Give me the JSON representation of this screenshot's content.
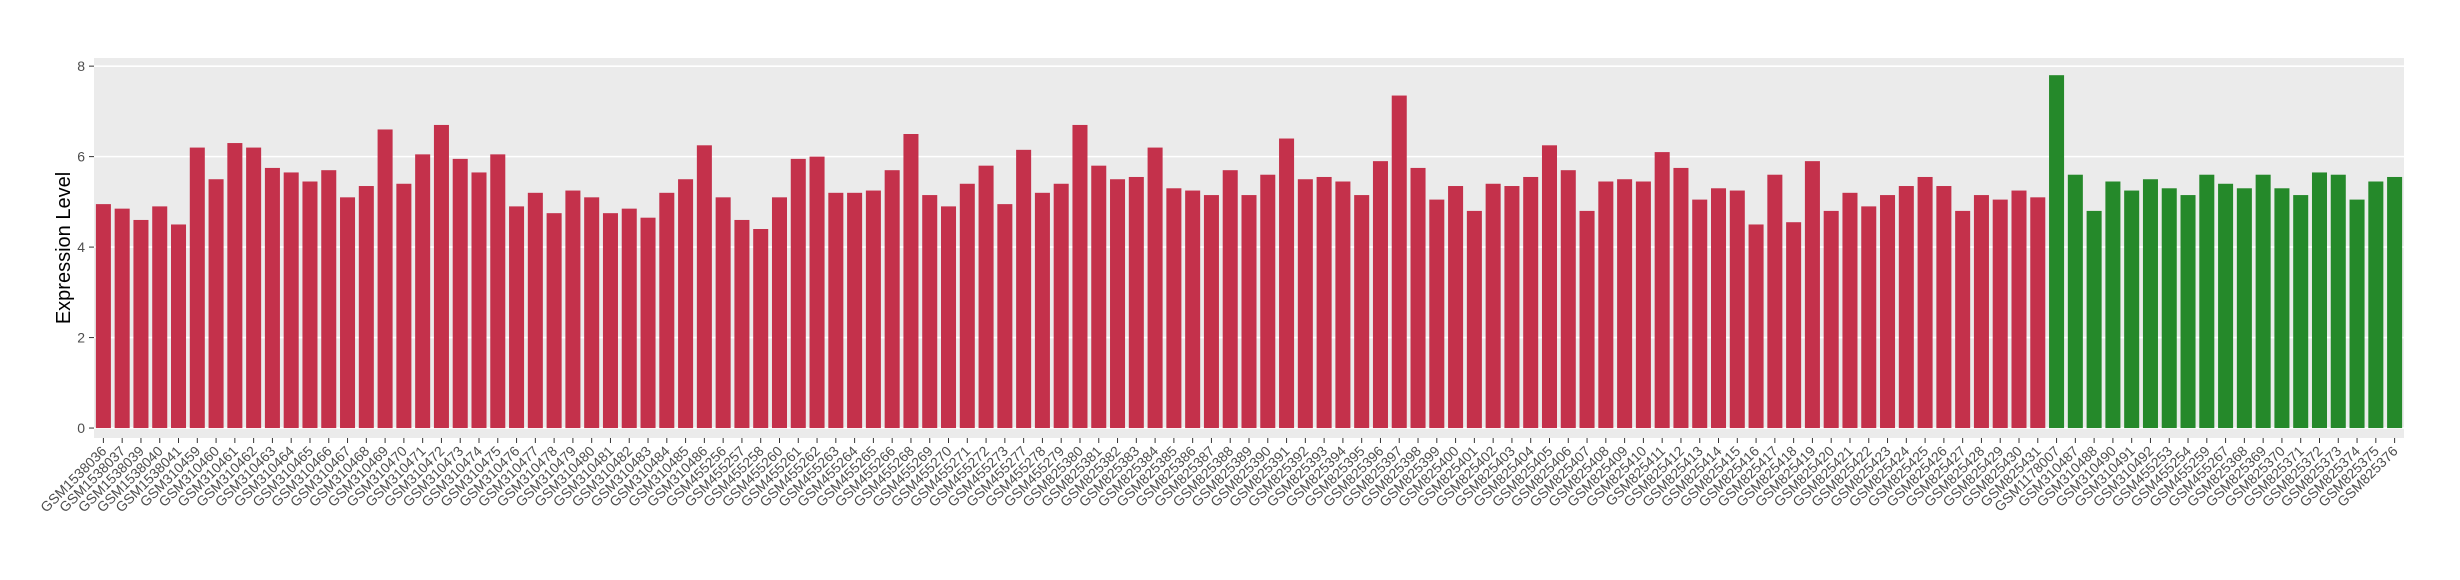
{
  "chart_data": {
    "type": "bar",
    "y_label": "Expression Level",
    "categories": [
      "GSM1538036",
      "GSM1538037",
      "GSM1538039",
      "GSM1538040",
      "GSM1538041",
      "GSM310459",
      "GSM310460",
      "GSM310461",
      "GSM310462",
      "GSM310463",
      "GSM310464",
      "GSM310465",
      "GSM310466",
      "GSM310467",
      "GSM310468",
      "GSM310469",
      "GSM310470",
      "GSM310471",
      "GSM310472",
      "GSM310473",
      "GSM310474",
      "GSM310475",
      "GSM310476",
      "GSM310477",
      "GSM310478",
      "GSM310479",
      "GSM310480",
      "GSM310481",
      "GSM310482",
      "GSM310483",
      "GSM310484",
      "GSM310485",
      "GSM310486",
      "GSM455256",
      "GSM455257",
      "GSM455258",
      "GSM455260",
      "GSM455261",
      "GSM455262",
      "GSM455263",
      "GSM455264",
      "GSM455265",
      "GSM455266",
      "GSM455268",
      "GSM455269",
      "GSM455270",
      "GSM455271",
      "GSM455272",
      "GSM455273",
      "GSM455277",
      "GSM455278",
      "GSM455279",
      "GSM825380",
      "GSM825381",
      "GSM825382",
      "GSM825383",
      "GSM825384",
      "GSM825385",
      "GSM825386",
      "GSM825387",
      "GSM825388",
      "GSM825389",
      "GSM825390",
      "GSM825391",
      "GSM825392",
      "GSM825393",
      "GSM825394",
      "GSM825395",
      "GSM825396",
      "GSM825397",
      "GSM825398",
      "GSM825399",
      "GSM825400",
      "GSM825401",
      "GSM825402",
      "GSM825403",
      "GSM825404",
      "GSM825405",
      "GSM825406",
      "GSM825407",
      "GSM825408",
      "GSM825409",
      "GSM825410",
      "GSM825411",
      "GSM825412",
      "GSM825413",
      "GSM825414",
      "GSM825415",
      "GSM825416",
      "GSM825417",
      "GSM825418",
      "GSM825419",
      "GSM825420",
      "GSM825421",
      "GSM825422",
      "GSM825423",
      "GSM825424",
      "GSM825425",
      "GSM825426",
      "GSM825427",
      "GSM825428",
      "GSM825429",
      "GSM825430",
      "GSM825431",
      "GSM1178007",
      "GSM310487",
      "GSM310488",
      "GSM310490",
      "GSM310491",
      "GSM310492",
      "GSM455253",
      "GSM455254",
      "GSM455259",
      "GSM455267",
      "GSM825368",
      "GSM825369",
      "GSM825370",
      "GSM825371",
      "GSM825372",
      "GSM825373",
      "GSM825374",
      "GSM825375",
      "GSM825376"
    ],
    "values": [
      4.95,
      4.85,
      4.6,
      4.9,
      4.5,
      6.2,
      5.5,
      6.3,
      6.2,
      5.75,
      5.65,
      5.45,
      5.7,
      5.1,
      5.35,
      6.6,
      5.4,
      6.05,
      6.7,
      5.95,
      5.65,
      6.05,
      4.9,
      5.2,
      4.75,
      5.25,
      5.1,
      4.75,
      4.85,
      4.65,
      5.2,
      5.5,
      6.25,
      5.1,
      4.6,
      4.4,
      5.1,
      5.95,
      6.0,
      5.2,
      5.2,
      5.25,
      5.7,
      6.5,
      5.15,
      4.9,
      5.4,
      5.8,
      4.95,
      6.15,
      5.2,
      5.4,
      6.7,
      5.8,
      5.5,
      5.55,
      6.2,
      5.3,
      5.25,
      5.15,
      5.7,
      5.15,
      5.6,
      6.4,
      5.5,
      5.55,
      5.45,
      5.15,
      5.9,
      7.35,
      5.75,
      5.05,
      5.35,
      4.8,
      5.4,
      5.35,
      5.55,
      6.25,
      5.7,
      4.8,
      5.45,
      5.5,
      5.45,
      6.1,
      5.75,
      5.05,
      5.3,
      5.25,
      4.5,
      5.6,
      4.55,
      5.9,
      4.8,
      5.2,
      4.9,
      5.15,
      5.35,
      5.55,
      5.35,
      4.8,
      5.15,
      5.05,
      5.25,
      5.1,
      7.8,
      5.6,
      4.8,
      5.45,
      5.25,
      5.5,
      5.3,
      5.15,
      5.6,
      5.4,
      5.3,
      5.6,
      5.3,
      5.15,
      5.65,
      5.6,
      5.05,
      5.45,
      5.55
    ],
    "colors": [
      "#c4314b",
      "#c4314b",
      "#c4314b",
      "#c4314b",
      "#c4314b",
      "#c4314b",
      "#c4314b",
      "#c4314b",
      "#c4314b",
      "#c4314b",
      "#c4314b",
      "#c4314b",
      "#c4314b",
      "#c4314b",
      "#c4314b",
      "#c4314b",
      "#c4314b",
      "#c4314b",
      "#c4314b",
      "#c4314b",
      "#c4314b",
      "#c4314b",
      "#c4314b",
      "#c4314b",
      "#c4314b",
      "#c4314b",
      "#c4314b",
      "#c4314b",
      "#c4314b",
      "#c4314b",
      "#c4314b",
      "#c4314b",
      "#c4314b",
      "#c4314b",
      "#c4314b",
      "#c4314b",
      "#c4314b",
      "#c4314b",
      "#c4314b",
      "#c4314b",
      "#c4314b",
      "#c4314b",
      "#c4314b",
      "#c4314b",
      "#c4314b",
      "#c4314b",
      "#c4314b",
      "#c4314b",
      "#c4314b",
      "#c4314b",
      "#c4314b",
      "#c4314b",
      "#c4314b",
      "#c4314b",
      "#c4314b",
      "#c4314b",
      "#c4314b",
      "#c4314b",
      "#c4314b",
      "#c4314b",
      "#c4314b",
      "#c4314b",
      "#c4314b",
      "#c4314b",
      "#c4314b",
      "#c4314b",
      "#c4314b",
      "#c4314b",
      "#c4314b",
      "#c4314b",
      "#c4314b",
      "#c4314b",
      "#c4314b",
      "#c4314b",
      "#c4314b",
      "#c4314b",
      "#c4314b",
      "#c4314b",
      "#c4314b",
      "#c4314b",
      "#c4314b",
      "#c4314b",
      "#c4314b",
      "#c4314b",
      "#c4314b",
      "#c4314b",
      "#c4314b",
      "#c4314b",
      "#c4314b",
      "#c4314b",
      "#c4314b",
      "#c4314b",
      "#c4314b",
      "#c4314b",
      "#c4314b",
      "#c4314b",
      "#c4314b",
      "#c4314b",
      "#c4314b",
      "#c4314b",
      "#c4314b",
      "#c4314b",
      "#c4314b",
      "#c4314b",
      "#25892a",
      "#25892a",
      "#25892a",
      "#25892a",
      "#25892a",
      "#25892a",
      "#25892a",
      "#25892a",
      "#25892a",
      "#25892a",
      "#25892a",
      "#25892a",
      "#25892a",
      "#25892a",
      "#25892a",
      "#25892a",
      "#25892a",
      "#25892a",
      "#25892a"
    ],
    "ylim": [
      -0.22,
      8.18
    ],
    "yticks": [
      0,
      2,
      4,
      6,
      8
    ],
    "grid": true
  }
}
